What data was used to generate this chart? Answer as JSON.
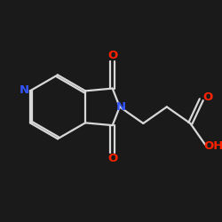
{
  "background": "#1a1a1a",
  "bond_color": "#d8d8d8",
  "N_color": "#3355ff",
  "O_color": "#ff2200",
  "figsize": [
    2.5,
    2.5
  ],
  "dpi": 100,
  "xlim": [
    0,
    10
  ],
  "ylim": [
    0,
    10
  ],
  "bond_lw": 1.6,
  "double_sep": 0.11,
  "font_size": 9.5
}
